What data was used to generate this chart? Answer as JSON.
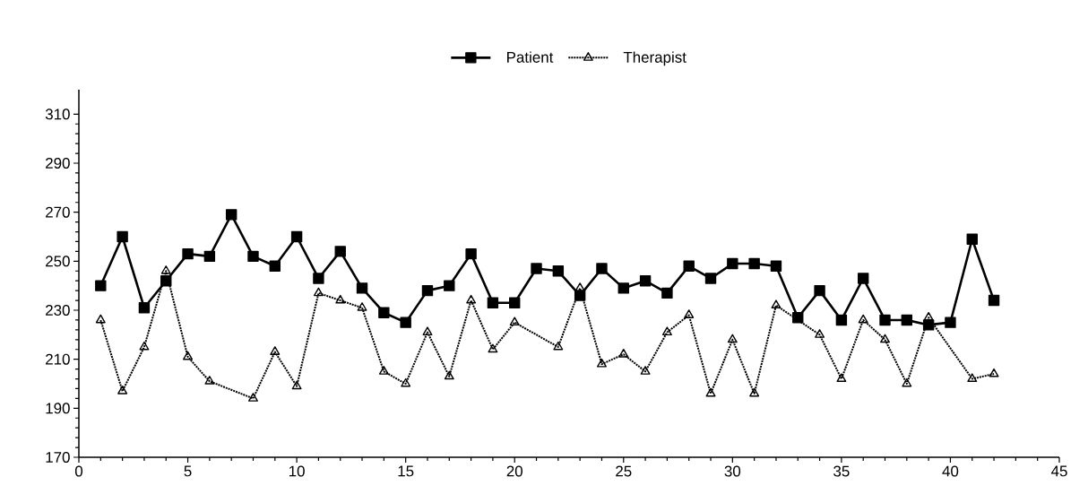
{
  "chart_data": {
    "type": "line",
    "x": [
      1,
      2,
      3,
      4,
      5,
      6,
      7,
      8,
      9,
      10,
      11,
      12,
      13,
      14,
      15,
      16,
      17,
      18,
      19,
      20,
      21,
      22,
      23,
      24,
      25,
      26,
      27,
      28,
      29,
      30,
      31,
      32,
      33,
      34,
      35,
      36,
      37,
      38,
      39,
      40,
      41,
      42
    ],
    "series": [
      {
        "name": "Patient",
        "color": "#000000",
        "marker": "square",
        "line_style": "solid",
        "values": [
          240,
          260,
          231,
          242,
          253,
          252,
          269,
          252,
          248,
          260,
          243,
          254,
          239,
          229,
          225,
          238,
          240,
          253,
          233,
          233,
          247,
          246,
          236,
          247,
          239,
          242,
          237,
          248,
          243,
          249,
          249,
          248,
          227,
          238,
          226,
          243,
          226,
          226,
          224,
          225,
          259,
          234
        ]
      },
      {
        "name": "Therapist",
        "color": "#000000",
        "marker": "triangle",
        "line_style": "dotted",
        "values": [
          226,
          197,
          215,
          246,
          211,
          201,
          null,
          194,
          213,
          199,
          237,
          234,
          231,
          205,
          200,
          221,
          203,
          234,
          214,
          225,
          null,
          215,
          239,
          208,
          212,
          205,
          221,
          228,
          196,
          218,
          196,
          232,
          null,
          220,
          202,
          226,
          218,
          200,
          227,
          null,
          202,
          204
        ]
      }
    ],
    "xlim": [
      0,
      45
    ],
    "xticks": [
      0,
      5,
      10,
      15,
      20,
      25,
      30,
      35,
      40,
      45
    ],
    "ylim": [
      170,
      320
    ],
    "yticks": [
      170,
      190,
      210,
      230,
      250,
      270,
      290,
      310
    ],
    "grid": false,
    "legend": "top"
  }
}
